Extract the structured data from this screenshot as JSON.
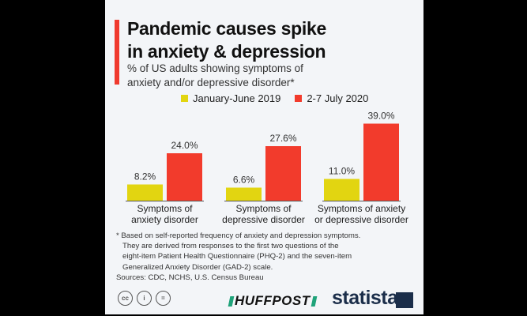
{
  "title_lines": [
    "Pandemic causes spike",
    "in anxiety & depression"
  ],
  "subtitle_lines": [
    "% of US adults showing symptoms of",
    "anxiety and/or depressive disorder*"
  ],
  "colors": {
    "series_2019": "#e2d511",
    "series_2020": "#f23b2c",
    "accent": "#f03a2e"
  },
  "chart_data": {
    "type": "bar",
    "categories": [
      "Symptoms of\nanxiety disorder",
      "Symptoms of\ndepressive disorder",
      "Symptoms of anxiety\nor depressive disorder"
    ],
    "series": [
      {
        "name": "January-June 2019",
        "values": [
          8.2,
          6.6,
          11.0
        ],
        "labels": [
          "8.2%",
          "6.6%",
          "11.0%"
        ]
      },
      {
        "name": "2-7 July 2020",
        "values": [
          24.0,
          27.6,
          39.0
        ],
        "labels": [
          "24.0%",
          "27.6%",
          "39.0%"
        ]
      }
    ],
    "legend": "top",
    "grid": false
  },
  "footnote_lines": [
    "* Based on self-reported frequency of anxiety and depression symptoms.",
    "They are derived from responses to the first two questions of the",
    "eight-item Patient Health Questionnaire (PHQ-2) and the seven-item",
    "Generalized Anxiety Disorder (GAD-2) scale."
  ],
  "sources": "Sources: CDC, NCHS, U.S. Census Bureau",
  "license_icons": [
    "cc",
    "by",
    "nd"
  ],
  "huffpost": "HUFFPOST",
  "statista": "statista"
}
